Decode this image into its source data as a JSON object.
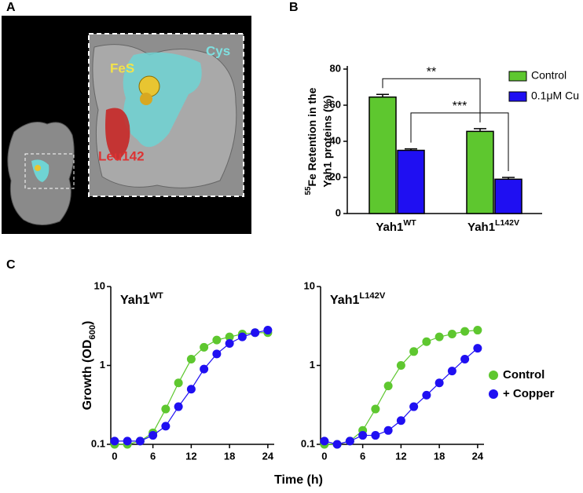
{
  "panel_a": {
    "label": "A",
    "annotations": [
      "FeS",
      "Cys",
      "Leu142"
    ]
  },
  "chart_data": [
    {
      "type": "bar",
      "label": "B",
      "ylabel": [
        "Fe Retention in the",
        "Yah1 proteins  (%)"
      ],
      "ylabel_superscript": "55",
      "categories": [
        "Yah1",
        "Yah1"
      ],
      "category_superscripts": [
        "WT",
        "L142V"
      ],
      "series": [
        {
          "name": "Control",
          "color": "#5ec72f",
          "values": [
            64.5,
            45.5
          ],
          "errors": [
            1.5,
            1.5
          ]
        },
        {
          "name": "0.1μM Cu",
          "color": "#1f0ff2",
          "values": [
            35,
            19
          ],
          "errors": [
            0.8,
            1
          ]
        }
      ],
      "ylim": [
        0,
        80
      ],
      "yticks": [
        0,
        20,
        40,
        60,
        80
      ],
      "annotations": [
        "**",
        "***"
      ]
    },
    {
      "type": "line",
      "label": "C",
      "title": "Yah1",
      "title_superscript": "WT",
      "ylabel": "Growth (OD",
      "ylabel_subscript": "600",
      "ylabel_suffix": ")",
      "xlabel": "Time (h)",
      "x": [
        0,
        2,
        4,
        6,
        8,
        10,
        12,
        14,
        16,
        18,
        20,
        22,
        24
      ],
      "series": [
        {
          "color": "#5ec72f",
          "values": [
            0.1,
            0.1,
            0.11,
            0.14,
            0.28,
            0.6,
            1.2,
            1.7,
            2.1,
            2.3,
            2.5,
            2.6,
            2.6
          ]
        },
        {
          "color": "#1f0ff2",
          "values": [
            0.11,
            0.11,
            0.11,
            0.13,
            0.17,
            0.3,
            0.5,
            0.9,
            1.4,
            1.9,
            2.3,
            2.6,
            2.8
          ]
        }
      ],
      "xlim": [
        -0.6,
        25
      ],
      "ylim": [
        0.1,
        10
      ],
      "xticks": [
        0,
        6,
        12,
        18,
        24
      ],
      "yticks": [
        0.1,
        1,
        10
      ],
      "yscale": "log"
    },
    {
      "type": "line",
      "title": "Yah1",
      "title_superscript": "L142V",
      "x": [
        0,
        2,
        4,
        6,
        8,
        10,
        12,
        14,
        16,
        18,
        20,
        22,
        24
      ],
      "series": [
        {
          "name": "Control",
          "color": "#5ec72f",
          "values": [
            0.1,
            0.1,
            0.11,
            0.15,
            0.28,
            0.55,
            1.0,
            1.5,
            2.0,
            2.3,
            2.5,
            2.7,
            2.8
          ]
        },
        {
          "name": "+ Copper",
          "color": "#1f0ff2",
          "values": [
            0.11,
            0.1,
            0.11,
            0.13,
            0.13,
            0.15,
            0.2,
            0.3,
            0.42,
            0.6,
            0.85,
            1.2,
            1.65
          ]
        }
      ],
      "xlim": [
        -0.6,
        25
      ],
      "ylim": [
        0.1,
        10
      ],
      "xticks": [
        0,
        6,
        12,
        18,
        24
      ],
      "yticks": [
        0.1,
        1,
        10
      ],
      "yscale": "log",
      "legend": "right"
    }
  ]
}
